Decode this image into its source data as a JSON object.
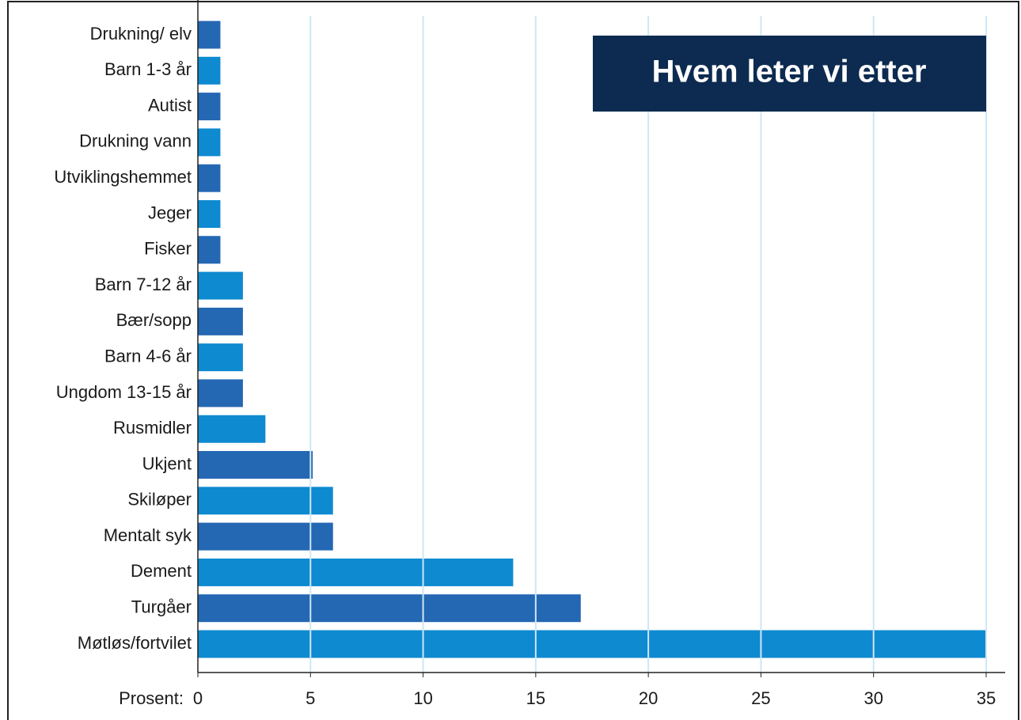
{
  "chart_data": {
    "type": "barh",
    "title": "Hvem leter vi etter",
    "xlabel": "Prosent:",
    "categories": [
      "Drukning/ elv",
      "Barn 1-3 år",
      "Autist",
      "Drukning vann",
      "Utviklingshemmet",
      "Jeger",
      "Fisker",
      "Barn 7-12 år",
      "Bær/sopp",
      "Barn 4-6 år",
      "Ungdom 13-15 år",
      "Rusmidler",
      "Ukjent",
      "Skiløper",
      "Mentalt syk",
      "Dement",
      "Turgåer",
      "Møtløs/fortvilet"
    ],
    "values": [
      1,
      1,
      1,
      1,
      1,
      1,
      1,
      2,
      2,
      2,
      2,
      3,
      5.1,
      6,
      6,
      14,
      17,
      35
    ],
    "colors": [
      "#2467b3",
      "#0e8ad0"
    ],
    "xlim": [
      0,
      35
    ],
    "xticks": [
      0,
      5,
      10,
      15,
      20,
      25,
      30,
      35
    ],
    "grid": true
  }
}
